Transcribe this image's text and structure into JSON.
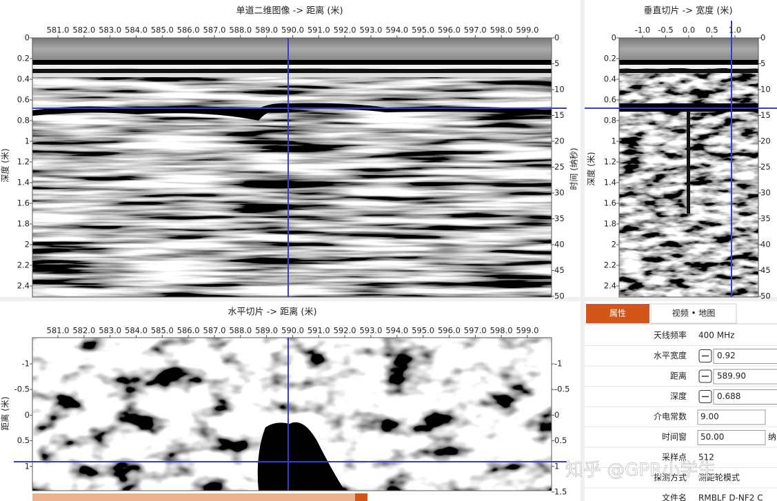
{
  "top_left": {
    "title": "单道二维图像 -> 距离 (米)",
    "x_ticks": [
      "581.0",
      "582.0",
      "583.0",
      "584.0",
      "585.0",
      "586.0",
      "587.0",
      "588.0",
      "589.0",
      "590.0",
      "591.0",
      "592.0",
      "593.0",
      "594.0",
      "595.0",
      "596.0",
      "597.0",
      "598.0",
      "599.0"
    ],
    "depth_ticks": [
      "0",
      "0.2",
      "0.4",
      "0.6",
      "0.8",
      "1",
      "1.2",
      "1.4",
      "1.6",
      "1.8",
      "2",
      "2.2",
      "2.4"
    ],
    "time_ticks": [
      "0",
      "5",
      "10",
      "15",
      "20",
      "25",
      "30",
      "35",
      "40",
      "45",
      "50"
    ],
    "y_label": "深度 (米)",
    "y2_label": "时间 (纳秒)"
  },
  "top_right": {
    "title": "垂直切片 -> 宽度 (米)",
    "x_ticks": [
      "-1.0",
      "-0.5",
      "0.0",
      "0.5",
      "1.0"
    ],
    "depth_ticks": [
      "0",
      "0.2",
      "0.4",
      "0.6",
      "0.8",
      "1",
      "1.2",
      "1.4",
      "1.6",
      "1.8",
      "2",
      "2.2",
      "2.4"
    ],
    "time_ticks": [
      "0",
      "5",
      "10",
      "15",
      "20",
      "25",
      "30",
      "35",
      "40",
      "45",
      "50"
    ],
    "y_label": "深度 (米)"
  },
  "bottom_left": {
    "title": "水平切片 -> 距离 (米)",
    "x_ticks": [
      "581.0",
      "582.0",
      "583.0",
      "584.0",
      "585.0",
      "586.0",
      "587.0",
      "588.0",
      "589.0",
      "590.0",
      "591.0",
      "592.0",
      "593.0",
      "594.0",
      "595.0",
      "596.0",
      "597.0",
      "598.0",
      "599.0"
    ],
    "y_ticks": [
      "-1",
      "-0.5",
      "0",
      "0.5",
      "1"
    ],
    "y2_ticks": [
      "-1",
      "-0.5",
      "0",
      "0.5",
      "1",
      "1.5"
    ],
    "y_label": "距离 (米)"
  },
  "properties": {
    "tabs": [
      "属性",
      "视频 • 地图"
    ],
    "rows": [
      {
        "label": "天线频率",
        "value": "400 MHz"
      },
      {
        "label": "水平宽度",
        "value": "0.92",
        "stepper": true
      },
      {
        "label": "距离",
        "value": "589.90",
        "stepper": true
      },
      {
        "label": "深度",
        "value": "0.688",
        "stepper": true
      },
      {
        "label": "介电常数",
        "value": "9.00",
        "input": true
      },
      {
        "label": "时间窗",
        "value": "50.00",
        "input": true,
        "unit": "纳"
      },
      {
        "label": "采样点",
        "value": "512"
      },
      {
        "label": "探测方式",
        "value": "测距轮模式"
      },
      {
        "label": "文件名",
        "value": "RMBLF D-NF2 C"
      }
    ]
  },
  "watermark": "知乎 @GPR小学生"
}
